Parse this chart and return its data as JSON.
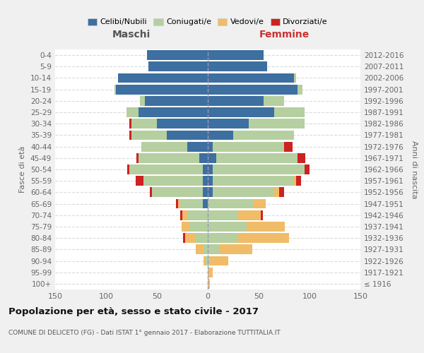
{
  "age_groups": [
    "100+",
    "95-99",
    "90-94",
    "85-89",
    "80-84",
    "75-79",
    "70-74",
    "65-69",
    "60-64",
    "55-59",
    "50-54",
    "45-49",
    "40-44",
    "35-39",
    "30-34",
    "25-29",
    "20-24",
    "15-19",
    "10-14",
    "5-9",
    "0-4"
  ],
  "birth_years": [
    "≤ 1916",
    "1917-1921",
    "1922-1926",
    "1927-1931",
    "1932-1936",
    "1937-1941",
    "1942-1946",
    "1947-1951",
    "1952-1956",
    "1957-1961",
    "1962-1966",
    "1967-1971",
    "1972-1976",
    "1977-1981",
    "1982-1986",
    "1987-1991",
    "1992-1996",
    "1997-2001",
    "2002-2006",
    "2007-2011",
    "2012-2016"
  ],
  "males": {
    "celibi": [
      0,
      0,
      0,
      0,
      0,
      0,
      0,
      5,
      5,
      5,
      5,
      8,
      20,
      40,
      50,
      68,
      62,
      90,
      88,
      58,
      60
    ],
    "coniugati": [
      0,
      0,
      2,
      4,
      12,
      18,
      20,
      22,
      50,
      58,
      72,
      60,
      45,
      35,
      25,
      12,
      5,
      2,
      0,
      0,
      0
    ],
    "vedovi": [
      0,
      0,
      2,
      8,
      10,
      8,
      5,
      2,
      0,
      0,
      0,
      0,
      0,
      0,
      0,
      0,
      0,
      0,
      0,
      0,
      0
    ],
    "divorziati": [
      0,
      0,
      0,
      0,
      2,
      0,
      2,
      2,
      2,
      8,
      2,
      2,
      0,
      2,
      2,
      0,
      0,
      0,
      0,
      0,
      0
    ]
  },
  "females": {
    "nubili": [
      0,
      0,
      0,
      0,
      0,
      0,
      0,
      0,
      5,
      5,
      5,
      8,
      5,
      25,
      40,
      65,
      55,
      88,
      85,
      58,
      55
    ],
    "coniugate": [
      0,
      0,
      2,
      12,
      30,
      38,
      30,
      45,
      60,
      80,
      90,
      80,
      70,
      60,
      55,
      30,
      20,
      5,
      2,
      0,
      0
    ],
    "vedove": [
      2,
      5,
      18,
      32,
      50,
      38,
      22,
      12,
      5,
      2,
      0,
      0,
      0,
      0,
      0,
      0,
      0,
      0,
      0,
      0,
      0
    ],
    "divorziate": [
      0,
      0,
      0,
      0,
      0,
      0,
      2,
      0,
      5,
      5,
      5,
      8,
      8,
      0,
      0,
      0,
      0,
      0,
      0,
      0,
      0
    ]
  },
  "colors": {
    "celibi": "#3d6fa0",
    "coniugati": "#b5cfa0",
    "vedovi": "#f0bc68",
    "divorziati": "#cc2222"
  },
  "title": "Popolazione per età, sesso e stato civile - 2017",
  "subtitle": "COMUNE DI DELICETO (FG) - Dati ISTAT 1° gennaio 2017 - Elaborazione TUTTITALIA.IT",
  "xlabel_left": "Maschi",
  "xlabel_right": "Femmine",
  "ylabel_left": "Fasce di età",
  "ylabel_right": "Anni di nascita",
  "xlim": 150,
  "bg_color": "#f0f0f0",
  "plot_bg": "#ffffff",
  "legend_labels": [
    "Celibi/Nubili",
    "Coniugati/e",
    "Vedovi/e",
    "Divorziati/e"
  ]
}
